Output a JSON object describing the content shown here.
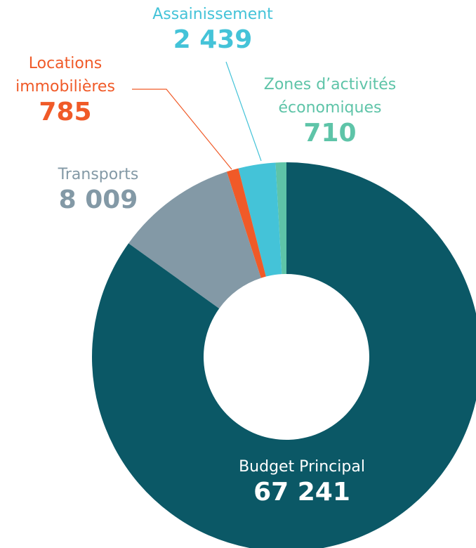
{
  "chart_data": {
    "type": "donut",
    "categories": [
      "Budget Principal",
      "Transports",
      "Locations immobilières",
      "Assainissement",
      "Zones d’activités économiques"
    ],
    "values": [
      67241,
      8009,
      785,
      2439,
      710
    ],
    "value_labels": [
      "67 241",
      "8 009",
      "785",
      "2 439",
      "710"
    ],
    "colors": [
      "#0b5866",
      "#8399a6",
      "#f05a28",
      "#44c3d8",
      "#5ec4a8"
    ]
  }
}
